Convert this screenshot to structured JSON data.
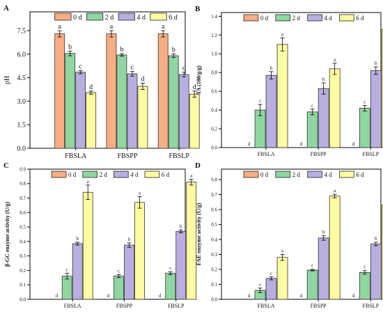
{
  "series_colors": [
    "#f9ad83",
    "#8fd6a0",
    "#b8aedf",
    "#fdfca2"
  ],
  "chart_data": [
    {
      "panel": "A",
      "type": "bar",
      "categories": [
        "FBSLA",
        "FBSPP",
        "FBSLP"
      ],
      "legend": [
        "0 d",
        "2 d",
        "4 d",
        "6 d"
      ],
      "series": [
        {
          "name": "0 d",
          "values": [
            7.3,
            7.3,
            7.3
          ],
          "errors": [
            0.2,
            0.2,
            0.2
          ],
          "letters": [
            "a",
            "a",
            "a"
          ]
        },
        {
          "name": "2 d",
          "values": [
            6.05,
            5.95,
            5.9
          ],
          "errors": [
            0.15,
            0.08,
            0.12
          ],
          "letters": [
            "b",
            "b",
            "b"
          ]
        },
        {
          "name": "4 d",
          "values": [
            4.85,
            4.75,
            4.7
          ],
          "errors": [
            0.1,
            0.15,
            0.15
          ],
          "letters": [
            "c",
            "c",
            "c"
          ]
        },
        {
          "name": "6 d",
          "values": [
            3.55,
            3.95,
            3.45
          ],
          "errors": [
            0.1,
            0.2,
            0.2
          ],
          "letters": [
            "d",
            "d",
            "d"
          ]
        }
      ],
      "ylabel": "pH",
      "ylim": [
        0,
        8.7
      ],
      "yticks": [
        "0.0",
        "1.5",
        "3.0",
        "4.5",
        "6.0",
        "7.5"
      ],
      "ytick_values": [
        0,
        1.5,
        3,
        4.5,
        6,
        7.5
      ],
      "legend_position": "top"
    },
    {
      "panel": "B",
      "type": "bar",
      "categories": [
        "FBSLA",
        "FBSPP",
        "FBSLP"
      ],
      "legend": [
        "0 d",
        "2 d",
        "4 d",
        "6 d"
      ],
      "series": [
        {
          "name": "0 d",
          "values": [
            0,
            0,
            0
          ],
          "errors": [
            0,
            0,
            0
          ],
          "letters": [
            "d",
            "d",
            "d"
          ]
        },
        {
          "name": "2 d",
          "values": [
            0.4,
            0.38,
            0.42
          ],
          "errors": [
            0.06,
            0.03,
            0.03
          ],
          "letters": [
            "c",
            "c",
            "c"
          ]
        },
        {
          "name": "4 d",
          "values": [
            0.77,
            0.63,
            0.82
          ],
          "errors": [
            0.04,
            0.06,
            0.04
          ],
          "letters": [
            "b",
            "b",
            "b"
          ]
        },
        {
          "name": "6 d",
          "values": [
            1.1,
            0.84,
            1.26
          ],
          "errors": [
            0.07,
            0.06,
            0.05
          ],
          "letters": [
            "a",
            "a",
            "a"
          ]
        }
      ],
      "ylabel": "TA (100/g/g)",
      "ylim": [
        0,
        1.44
      ],
      "yticks": [
        "0.0",
        "0.2",
        "0.4",
        "0.6",
        "0.8",
        "1.0",
        "1.2",
        "1.4"
      ],
      "ytick_values": [
        0,
        0.2,
        0.4,
        0.6,
        0.8,
        1.0,
        1.2,
        1.4
      ],
      "legend_position": "top"
    },
    {
      "panel": "C",
      "type": "bar",
      "categories": [
        "FBSLA",
        "FBSPP",
        "FBSLP"
      ],
      "legend": [
        "0 d",
        "2 d",
        "4 d",
        "6 d"
      ],
      "series": [
        {
          "name": "0 d",
          "values": [
            0,
            0,
            0
          ],
          "errors": [
            0,
            0,
            0
          ],
          "letters": [
            "d",
            "d",
            "d"
          ]
        },
        {
          "name": "2 d",
          "values": [
            0.16,
            0.16,
            0.18
          ],
          "errors": [
            0.02,
            0.01,
            0.01
          ],
          "letters": [
            "c",
            "c",
            "c"
          ]
        },
        {
          "name": "4 d",
          "values": [
            0.385,
            0.375,
            0.47
          ],
          "errors": [
            0.01,
            0.015,
            0.01
          ],
          "letters": [
            "b",
            "b",
            "b"
          ]
        },
        {
          "name": "6 d",
          "values": [
            0.74,
            0.67,
            0.81
          ],
          "errors": [
            0.05,
            0.04,
            0.02
          ],
          "letters": [
            "a",
            "a",
            "a"
          ]
        }
      ],
      "ylabel": "β-GC enzyme activity (U/g)",
      "ylim": [
        0,
        0.9
      ],
      "yticks": [
        "0.0",
        "0.1",
        "0.2",
        "0.3",
        "0.4",
        "0.5",
        "0.6",
        "0.7",
        "0.8",
        "0.9"
      ],
      "ytick_values": [
        0,
        0.1,
        0.2,
        0.3,
        0.4,
        0.5,
        0.6,
        0.7,
        0.8,
        0.9
      ],
      "legend_position": "top"
    },
    {
      "panel": "D",
      "type": "bar",
      "categories": [
        "FBSLA",
        "FBSPP",
        "FBSLP"
      ],
      "legend": [
        "0 d",
        "2 d",
        "4 d",
        "6 d"
      ],
      "series": [
        {
          "name": "0 d",
          "values": [
            0,
            0,
            0
          ],
          "errors": [
            0,
            0,
            0
          ],
          "letters": [
            "d",
            "d",
            "d"
          ]
        },
        {
          "name": "2 d",
          "values": [
            0.06,
            0.195,
            0.18
          ],
          "errors": [
            0.015,
            0.005,
            0.012
          ],
          "letters": [
            "c",
            "c",
            "c"
          ]
        },
        {
          "name": "4 d",
          "values": [
            0.14,
            0.41,
            0.37
          ],
          "errors": [
            0.01,
            0.015,
            0.012
          ],
          "letters": [
            "c",
            "b",
            "b"
          ]
        },
        {
          "name": "6 d",
          "values": [
            0.28,
            0.69,
            0.63
          ],
          "errors": [
            0.02,
            0.012,
            0.012
          ],
          "letters": [
            "a",
            "a",
            "a"
          ]
        }
      ],
      "ylabel": "FAE enzyme activity (U/g)",
      "ylim": [
        0,
        0.87
      ],
      "yticks": [
        "0.0",
        "0.1",
        "0.2",
        "0.3",
        "0.4",
        "0.5",
        "0.6",
        "0.7",
        "0.8"
      ],
      "ytick_values": [
        0,
        0.1,
        0.2,
        0.3,
        0.4,
        0.5,
        0.6,
        0.7,
        0.8
      ],
      "legend_position": "top"
    }
  ]
}
